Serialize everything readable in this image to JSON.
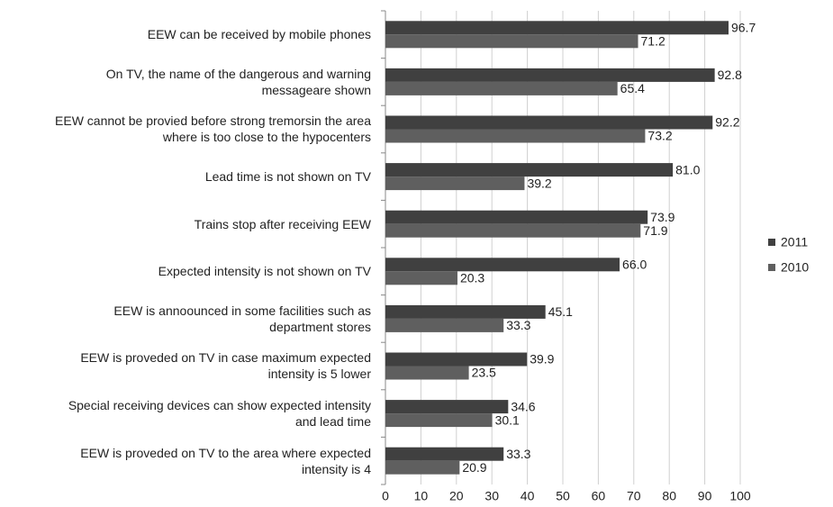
{
  "chart_data": {
    "type": "bar",
    "orientation": "horizontal",
    "categories": [
      "EEW can be received by mobile phones",
      "On TV, the name of the dangerous and warning messageare shown",
      "EEW cannot be provied before strong tremorsin the area where is too close to the hypocenters",
      "Lead time is not shown on TV",
      "Trains stop after receiving EEW",
      "Expected intensity is not shown on TV",
      "EEW is annoounced in some facilities such as department stores",
      "EEW is proveded on TV in case maximum expected intensity is 5 lower",
      "Special receiving devices can show expected intensity and lead time",
      "EEW is proveded on TV to the area where expected intensity is 4"
    ],
    "series": [
      {
        "name": "2011",
        "color": "#404040",
        "values": [
          96.7,
          92.8,
          92.2,
          81.0,
          73.9,
          66.0,
          45.1,
          39.9,
          34.6,
          33.3
        ],
        "value_labels": [
          "96.7",
          "92.8",
          "92.2",
          "81.0",
          "73.9",
          "66.0",
          "45.1",
          "39.9",
          "34.6",
          "33.3"
        ]
      },
      {
        "name": "2010",
        "color": "#5f5f5f",
        "values": [
          71.2,
          65.4,
          73.2,
          39.2,
          71.9,
          20.3,
          33.3,
          23.5,
          30.1,
          20.9
        ],
        "value_labels": [
          "71.2",
          "65.4",
          "73.2",
          "39.2",
          "71.9",
          "20.3",
          "33.3",
          "23.5",
          "30.1",
          "20.9"
        ]
      }
    ],
    "xlim": [
      0,
      100
    ],
    "xticks": [
      0,
      10,
      20,
      30,
      40,
      50,
      60,
      70,
      80,
      90,
      100
    ],
    "grid": true,
    "legend": "right"
  }
}
